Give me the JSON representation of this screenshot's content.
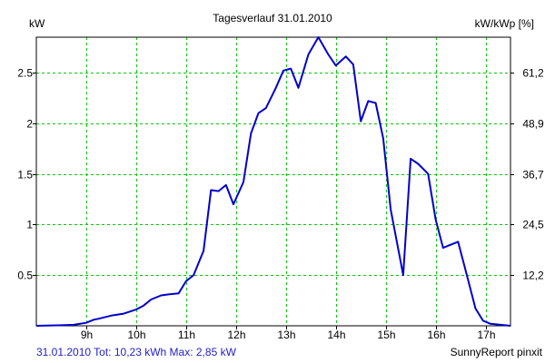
{
  "chart_data": {
    "type": "line",
    "title": "Tagesverlauf 31.01.2010",
    "y_left_label": "kW",
    "y_right_label": "kW/kWp [%]",
    "x_ticks": [
      {
        "label": "9h",
        "value": 9
      },
      {
        "label": "10h",
        "value": 10
      },
      {
        "label": "11h",
        "value": 11
      },
      {
        "label": "12h",
        "value": 12
      },
      {
        "label": "13h",
        "value": 13
      },
      {
        "label": "14h",
        "value": 14
      },
      {
        "label": "15h",
        "value": 15
      },
      {
        "label": "16h",
        "value": 16
      },
      {
        "label": "17h",
        "value": 17
      }
    ],
    "y_left_ticks": [
      {
        "label": "0.5",
        "value": 0.5
      },
      {
        "label": "1",
        "value": 1
      },
      {
        "label": "1.5",
        "value": 1.5
      },
      {
        "label": "2",
        "value": 2
      },
      {
        "label": "2.5",
        "value": 2.5
      }
    ],
    "y_right_ticks": [
      {
        "label": "12,2",
        "value": 0.5
      },
      {
        "label": "24,5",
        "value": 1
      },
      {
        "label": "36,7",
        "value": 1.5
      },
      {
        "label": "48,9",
        "value": 2
      },
      {
        "label": "61,2",
        "value": 2.5
      }
    ],
    "xlim": [
      8,
      17.5
    ],
    "ylim": [
      0,
      2.85
    ],
    "grid": true,
    "series": [
      {
        "color": "#0000cc",
        "x": [
          8.0,
          8.5,
          8.75,
          9.0,
          9.15,
          9.25,
          9.5,
          9.75,
          10.0,
          10.15,
          10.3,
          10.5,
          10.65,
          10.85,
          11.0,
          11.15,
          11.35,
          11.5,
          11.65,
          11.8,
          11.95,
          12.15,
          12.3,
          12.45,
          12.6,
          12.8,
          12.95,
          13.1,
          13.25,
          13.45,
          13.65,
          13.85,
          14.0,
          14.2,
          14.35,
          14.5,
          14.65,
          14.8,
          14.95,
          15.1,
          15.35,
          15.5,
          15.65,
          15.85,
          16.0,
          16.15,
          16.3,
          16.45,
          16.6,
          16.8,
          16.95,
          17.1,
          17.5
        ],
        "y": [
          0.0,
          0.005,
          0.01,
          0.03,
          0.06,
          0.07,
          0.1,
          0.12,
          0.16,
          0.2,
          0.26,
          0.3,
          0.31,
          0.32,
          0.44,
          0.5,
          0.74,
          1.34,
          1.33,
          1.39,
          1.2,
          1.42,
          1.9,
          2.1,
          2.15,
          2.35,
          2.52,
          2.54,
          2.35,
          2.68,
          2.85,
          2.68,
          2.57,
          2.66,
          2.58,
          2.02,
          2.22,
          2.2,
          1.85,
          1.15,
          0.5,
          1.65,
          1.6,
          1.5,
          1.05,
          0.77,
          0.8,
          0.83,
          0.55,
          0.17,
          0.05,
          0.02,
          0.0
        ]
      }
    ]
  },
  "footer": {
    "left": "31.01.2010 Tot: 10,23 kWh Max: 2,85 kW",
    "right": "SunnyReport pinxit"
  }
}
